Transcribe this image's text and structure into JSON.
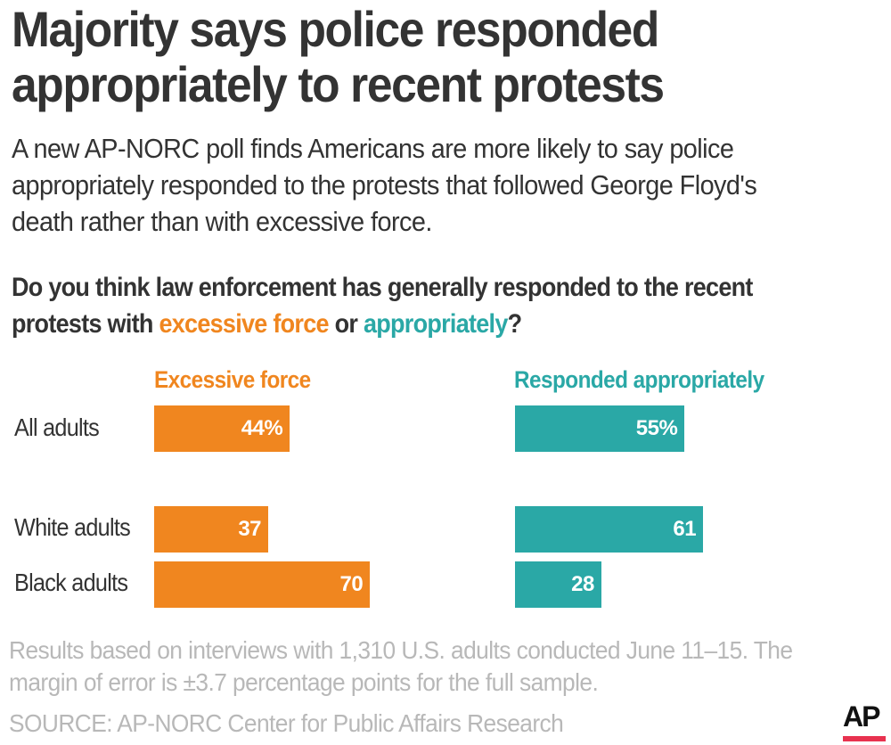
{
  "title": "Majority says police responded appropriately to recent protests",
  "subtitle": "A new AP-NORC poll finds Americans are more likely to say police appropriately responded to the protests that followed George Floyd's death rather than with excessive force.",
  "question": {
    "prefix": "Do you think law enforcement has generally responded to the recent protests with ",
    "highlight1": "excessive force",
    "middle": " or ",
    "highlight2": "appropriately",
    "suffix": "?"
  },
  "colors": {
    "excessive_force": "#f0861f",
    "responded_appropriately": "#2aa8a6",
    "ap_red": "#e8324f"
  },
  "chart_data": {
    "type": "bar",
    "orientation": "horizontal",
    "title": "Do you think law enforcement has generally responded to the recent protests with excessive force or appropriately?",
    "categories": [
      "All adults",
      "White adults",
      "Black adults"
    ],
    "series": [
      {
        "name": "Excessive force",
        "values": [
          44,
          37,
          70
        ],
        "labels": [
          "44%",
          "37",
          "70"
        ],
        "color": "#f0861f"
      },
      {
        "name": "Responded appropriately",
        "values": [
          55,
          61,
          28
        ],
        "labels": [
          "55%",
          "61",
          "28"
        ],
        "color": "#2aa8a6"
      }
    ],
    "xlim": [
      0,
      100
    ],
    "unit": "percent",
    "grid": false,
    "legend": "column headers above each bar group"
  },
  "footnote": "Results based on interviews with 1,310 U.S. adults conducted June 11–15. The margin of error is ±3.7 percentage points for the full sample.",
  "source": "SOURCE: AP-NORC Center for Public Affairs Research",
  "logo": "AP"
}
